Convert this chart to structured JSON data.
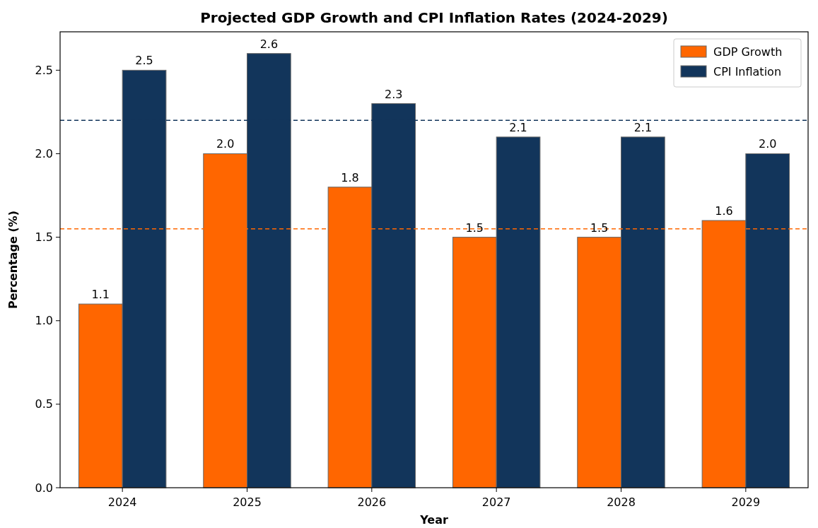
{
  "chart_data": {
    "type": "bar",
    "title": "Projected GDP Growth and CPI Inflation Rates (2024-2029)",
    "xlabel": "Year",
    "ylabel": "Percentage (%)",
    "categories": [
      "2024",
      "2025",
      "2026",
      "2027",
      "2028",
      "2029"
    ],
    "series": [
      {
        "name": "GDP Growth",
        "color": "#ff6600",
        "values": [
          1.1,
          2.0,
          1.8,
          1.5,
          1.5,
          1.6
        ],
        "value_labels": [
          "1.1",
          "2.0",
          "1.8",
          "1.5",
          "1.5",
          "1.6"
        ]
      },
      {
        "name": "CPI Inflation",
        "color": "#12355b",
        "values": [
          2.5,
          2.6,
          2.3,
          2.1,
          2.1,
          2.0
        ],
        "value_labels": [
          "2.5",
          "2.6",
          "2.3",
          "2.1",
          "2.1",
          "2.0"
        ]
      }
    ],
    "ylim": [
      0,
      2.73
    ],
    "yticks": [
      {
        "value": 0,
        "label": "0.0"
      },
      {
        "value": 0.5,
        "label": "0.5"
      },
      {
        "value": 1,
        "label": "1.0"
      },
      {
        "value": 1.5,
        "label": "1.5"
      },
      {
        "value": 2,
        "label": "2.0"
      },
      {
        "value": 2.5,
        "label": "2.5"
      }
    ],
    "ref_lines": [
      {
        "axis": "y",
        "value": 2.2,
        "color": "#12355b",
        "line_style": "dashed"
      },
      {
        "axis": "y",
        "value": 1.55,
        "color": "#ff6600",
        "line_style": "dashed"
      }
    ],
    "legend": "top right",
    "grid": false
  }
}
